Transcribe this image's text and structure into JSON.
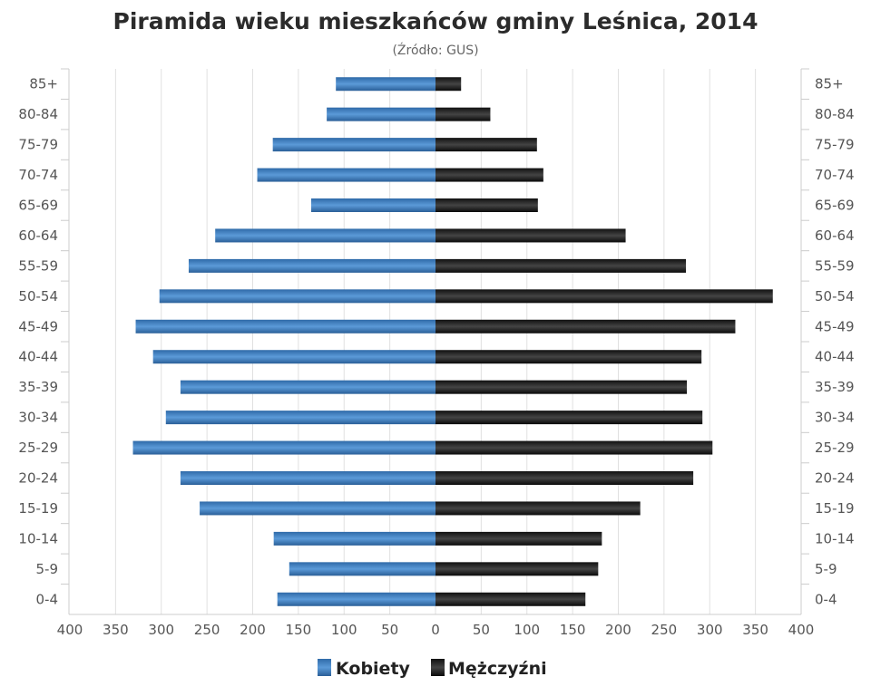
{
  "chart_data": {
    "type": "bar",
    "orientation": "horizontal-population-pyramid",
    "title": "Piramida wieku mieszkańców gminy Leśnica, 2014",
    "subtitle": "(Źródło: GUS)",
    "categories": [
      "85+",
      "80-84",
      "75-79",
      "70-74",
      "65-69",
      "60-64",
      "55-59",
      "50-54",
      "45-49",
      "40-44",
      "35-39",
      "30-34",
      "25-29",
      "20-24",
      "15-19",
      "10-14",
      "5-9",
      "0-4"
    ],
    "series": [
      {
        "name": "Kobiety",
        "side": "left",
        "color": "#3a7bc0",
        "values": [
          109,
          119,
          178,
          195,
          136,
          241,
          270,
          302,
          328,
          309,
          279,
          295,
          331,
          279,
          258,
          177,
          160,
          173
        ]
      },
      {
        "name": "Mężczyźni",
        "side": "right",
        "color": "#1a1a1a",
        "values": [
          28,
          60,
          111,
          118,
          112,
          208,
          274,
          369,
          328,
          291,
          275,
          292,
          303,
          282,
          224,
          182,
          178,
          164
        ]
      }
    ],
    "xlim": [
      -400,
      400
    ],
    "xticks": [
      "400",
      "350",
      "300",
      "250",
      "200",
      "150",
      "100",
      "50",
      "0",
      "50",
      "100",
      "150",
      "200",
      "250",
      "300",
      "350",
      "400"
    ],
    "legend_position": "bottom-center",
    "grid": true
  }
}
